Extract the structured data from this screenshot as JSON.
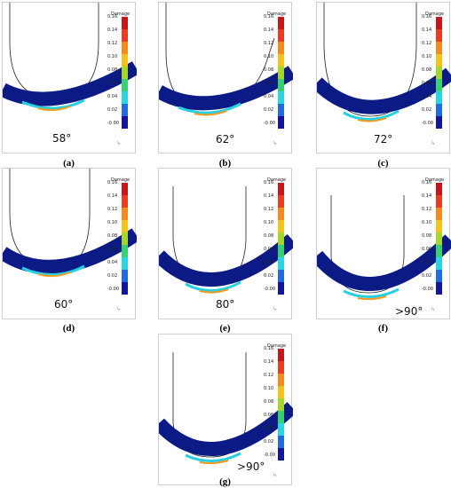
{
  "legend": {
    "title": "Damage",
    "ticks": [
      "0.16",
      "0.14",
      "0.12",
      "0.10",
      "0.08",
      "0.06",
      "0.04",
      "0.02",
      "-0.00"
    ],
    "colors": [
      "#c8151b",
      "#ee3a1f",
      "#f68a1e",
      "#f6c31a",
      "#a5d72a",
      "#36d26e",
      "#27d6e0",
      "#1f6be0",
      "#13159c"
    ]
  },
  "panels": [
    {
      "id": "a",
      "caption": "(a)",
      "angle": "58°"
    },
    {
      "id": "b",
      "caption": "(b)",
      "angle": "62°"
    },
    {
      "id": "c",
      "caption": "(c)",
      "angle": "72°"
    },
    {
      "id": "d",
      "caption": "(d)",
      "angle": "60°"
    },
    {
      "id": "e",
      "caption": "(e)",
      "angle": "80°"
    },
    {
      "id": "f",
      "caption": "(f)",
      "angle": ">90°"
    },
    {
      "id": "g",
      "caption": "(g)",
      "angle": ">90°"
    }
  ]
}
